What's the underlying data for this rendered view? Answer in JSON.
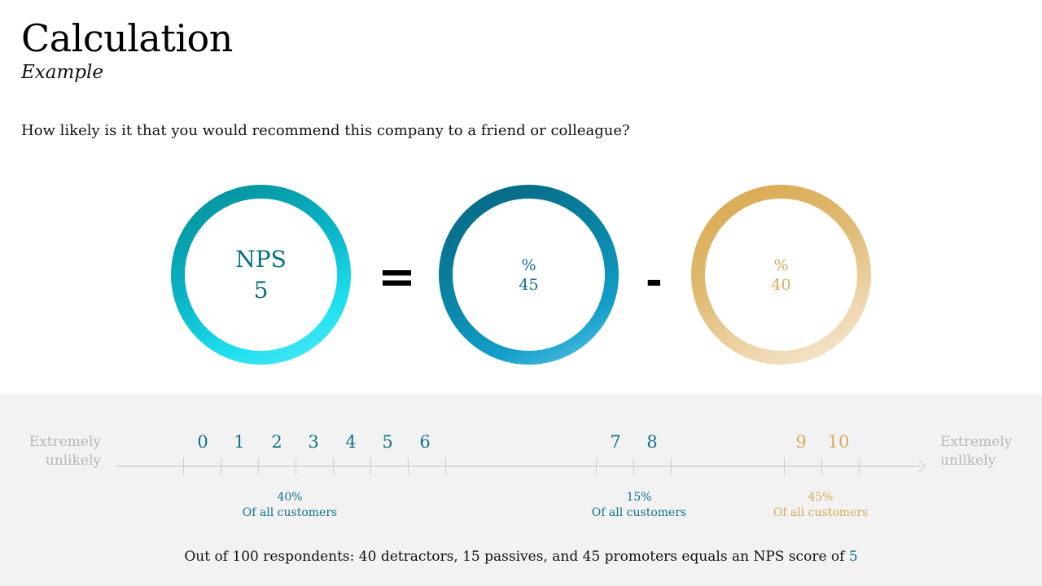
{
  "title": "Calculation",
  "subtitle": "Example",
  "question": "How likely is it that you would recommend this company to a friend or colleague?",
  "nps_circle": {
    "label": "NPS",
    "value": "5"
  },
  "operators": {
    "equals": "=",
    "minus": "-"
  },
  "promoters_circle": {
    "symbol": "%",
    "value": "45"
  },
  "detractors_circle": {
    "symbol": "%",
    "value": "40"
  },
  "scale": {
    "left_label": [
      "Extremely",
      "unlikely"
    ],
    "right_label": [
      "Extremely",
      "unlikely"
    ],
    "detractor_numbers": [
      "0",
      "1",
      "2",
      "3",
      "4",
      "5",
      "6"
    ],
    "passive_numbers": [
      "7",
      "8"
    ],
    "promoter_numbers": [
      "9",
      "10"
    ]
  },
  "groups": {
    "detractors": {
      "percent": "40%",
      "caption": "Of all customers"
    },
    "passives": {
      "percent": "15%",
      "caption": "Of all customers"
    },
    "promoters": {
      "percent": "45%",
      "caption": "Of all customers"
    }
  },
  "footer": {
    "text": "Out of 100 respondents: 40 detractors, 15 passives, and 45 promoters equals an NPS score of",
    "score": "5"
  },
  "colors": {
    "teal": "#12708a",
    "gold": "#d6ab5a",
    "cyan": "#1fe0f0",
    "gray_label": "#b8b8b8",
    "band": "#f2f2f2"
  }
}
